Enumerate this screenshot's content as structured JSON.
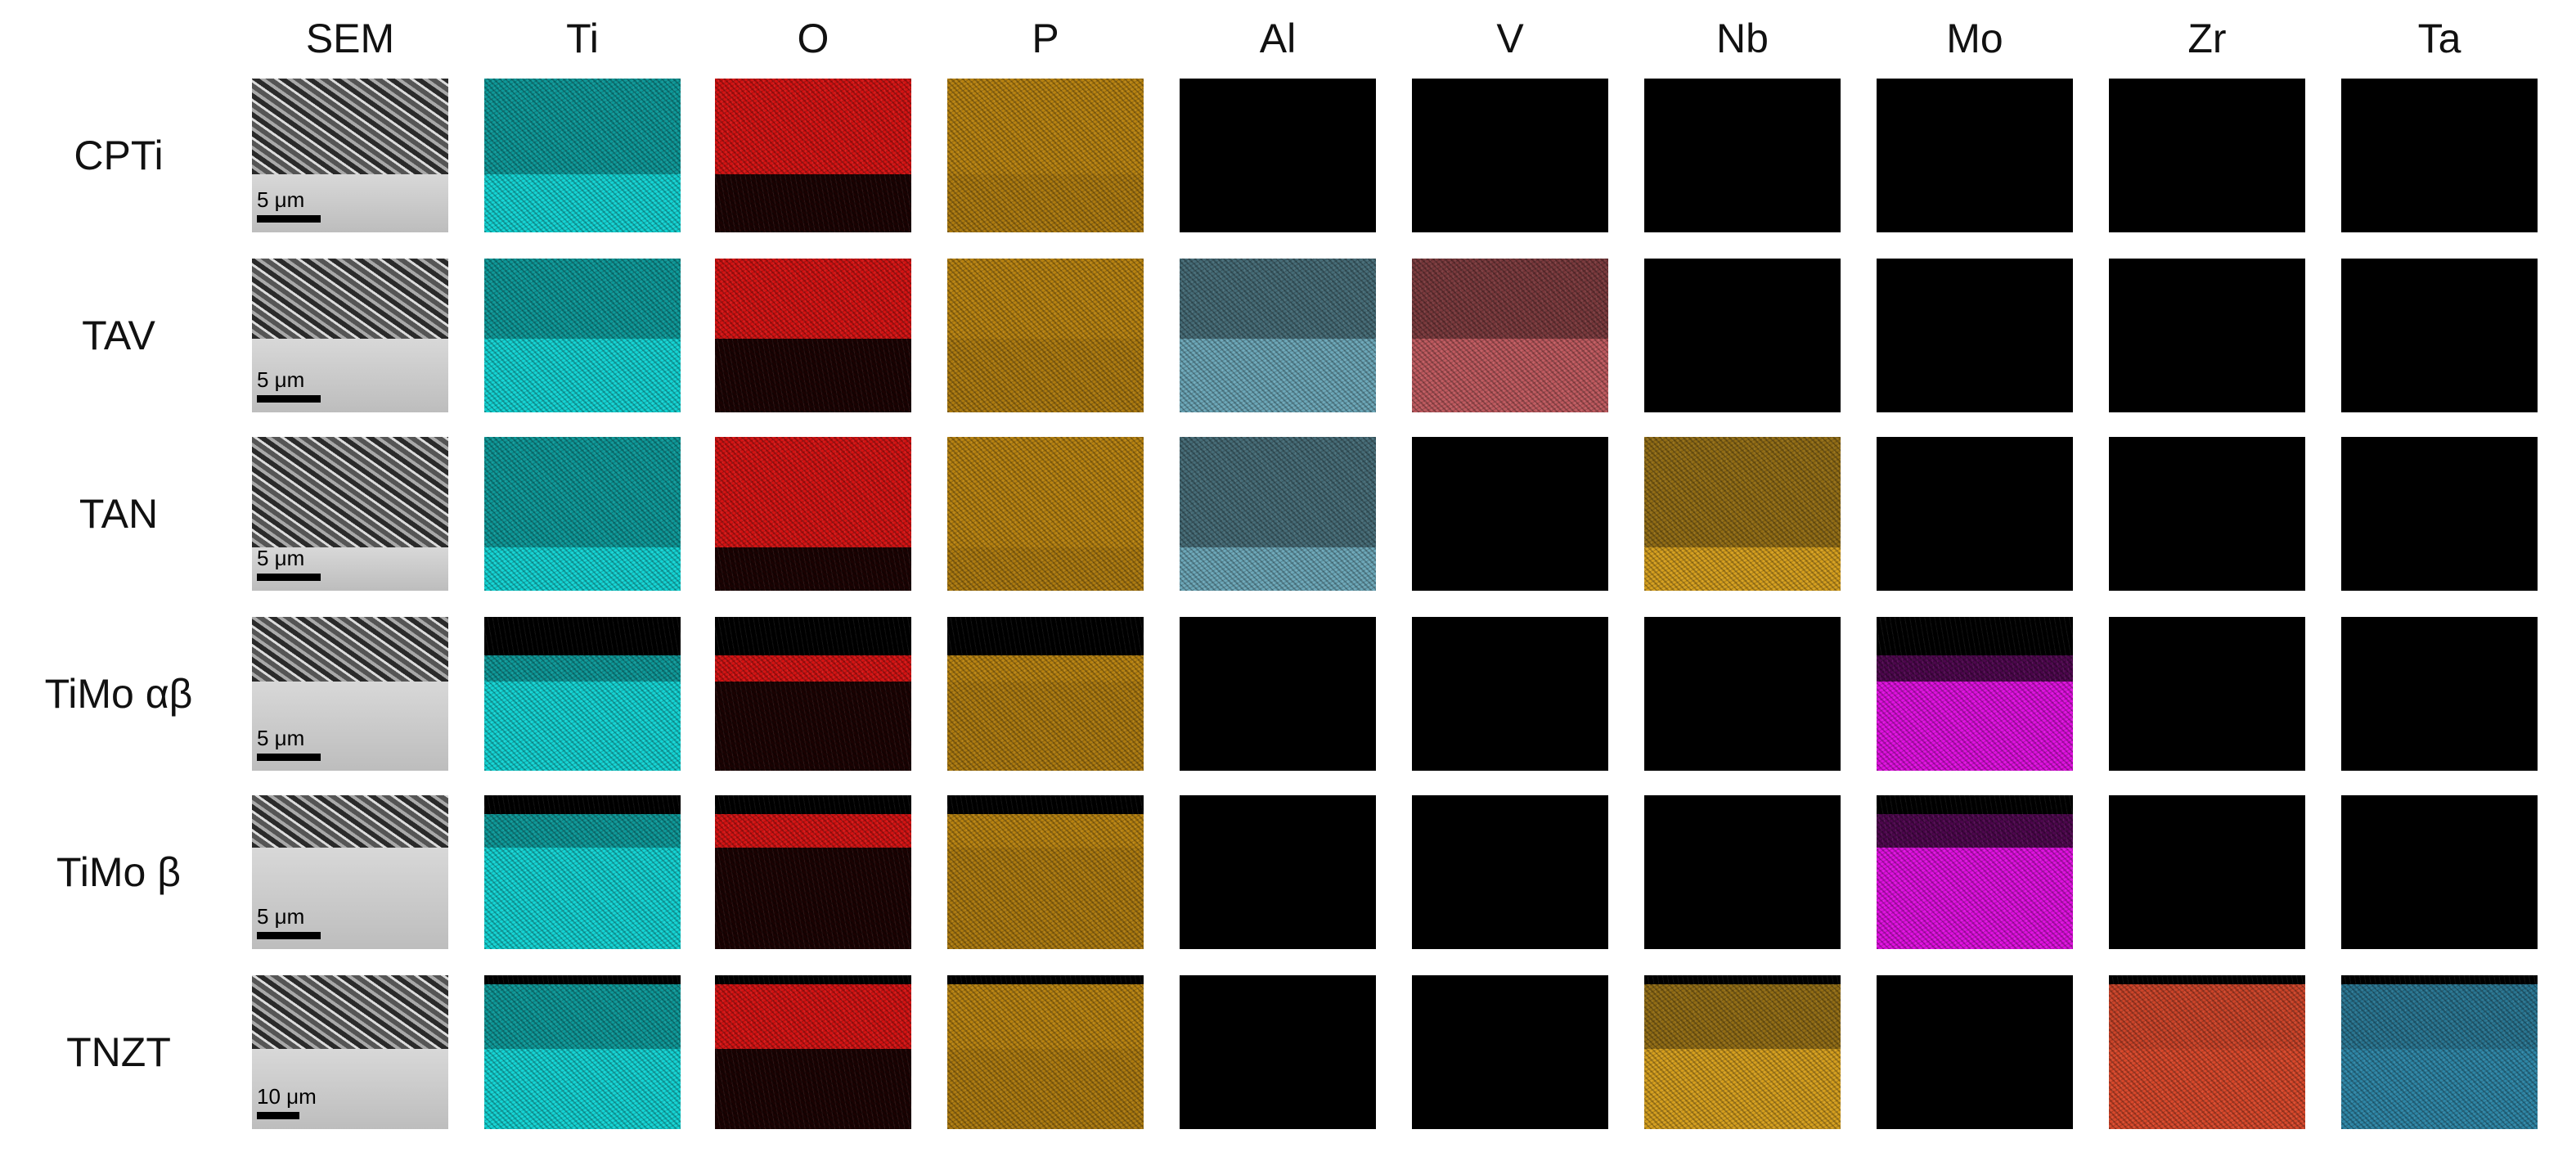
{
  "figure": {
    "columns": [
      "SEM",
      "Ti",
      "O",
      "P",
      "Al",
      "V",
      "Nb",
      "Mo",
      "Zr",
      "Ta"
    ],
    "rows": [
      {
        "label": "CPTi",
        "scale_bar": "5 μm",
        "maps": {
          "Ti": "signal",
          "O": "signal",
          "P": "signal",
          "Al": "none",
          "V": "none",
          "Nb": "none",
          "Mo": "none",
          "Zr": "none",
          "Ta": "none"
        }
      },
      {
        "label": "TAV",
        "scale_bar": "5 μm",
        "maps": {
          "Ti": "signal",
          "O": "signal",
          "P": "signal",
          "Al": "signal",
          "V": "signal",
          "Nb": "none",
          "Mo": "none",
          "Zr": "none",
          "Ta": "none"
        }
      },
      {
        "label": "TAN",
        "scale_bar": "5 μm",
        "maps": {
          "Ti": "signal",
          "O": "signal",
          "P": "signal",
          "Al": "signal",
          "V": "none",
          "Nb": "signal",
          "Mo": "none",
          "Zr": "none",
          "Ta": "none"
        }
      },
      {
        "label": "TiMo αβ",
        "scale_bar": "5 μm",
        "maps": {
          "Ti": "signal",
          "O": "signal",
          "P": "signal",
          "Al": "none",
          "V": "none",
          "Nb": "none",
          "Mo": "signal",
          "Zr": "none",
          "Ta": "none"
        }
      },
      {
        "label": "TiMo β",
        "scale_bar": "5 μm",
        "maps": {
          "Ti": "signal",
          "O": "signal",
          "P": "signal",
          "Al": "none",
          "V": "none",
          "Nb": "none",
          "Mo": "signal",
          "Zr": "none",
          "Ta": "none"
        }
      },
      {
        "label": "TNZT",
        "scale_bar": "10 μm",
        "maps": {
          "Ti": "signal",
          "O": "signal",
          "P": "signal",
          "Al": "none",
          "V": "none",
          "Nb": "signal",
          "Mo": "none",
          "Zr": "signal",
          "Ta": "signal"
        }
      }
    ],
    "element_colors": {
      "Ti": "#14d4d4",
      "O": "#e01414",
      "P": "#d89a14",
      "Al": "#7fc4d8",
      "V": "#e06a70",
      "Nb": "#e0a820",
      "Mo": "#e010e0",
      "Zr": "#f05030",
      "Ta": "#3aa8d0"
    }
  }
}
